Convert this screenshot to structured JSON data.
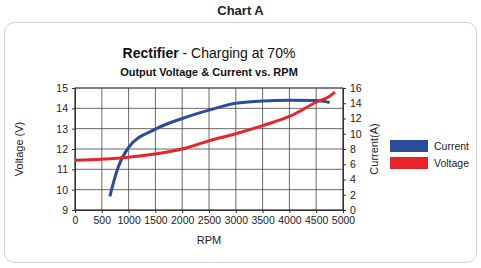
{
  "heading": "Chart A",
  "chart_data": {
    "type": "line",
    "title": "Rectifier - Charging at 70%",
    "subtitle": "Output Voltage & Current vs. RPM",
    "xlabel": "RPM",
    "ylabel": "Voltage (V)",
    "y2label": "Current(A)",
    "x": [
      0,
      500,
      650,
      800,
      1000,
      1500,
      2000,
      2500,
      3000,
      3500,
      4000,
      4500,
      4750,
      4850
    ],
    "series": [
      {
        "name": "Current",
        "color": "#2b4c9b",
        "axis": "y2",
        "values": [
          null,
          null,
          1.8,
          5.5,
          8.2,
          10.6,
          12.0,
          13.1,
          14.0,
          14.3,
          14.4,
          14.35,
          14.1,
          null
        ]
      },
      {
        "name": "Voltage",
        "color": "#e8232a",
        "values": [
          11.45,
          11.5,
          11.52,
          11.55,
          11.6,
          11.75,
          12.0,
          12.4,
          12.75,
          13.15,
          13.6,
          14.3,
          14.6,
          14.8
        ]
      }
    ],
    "xlim": [
      0,
      5000
    ],
    "xticks": [
      0,
      500,
      1000,
      1500,
      2000,
      2500,
      3000,
      3500,
      4000,
      4500,
      5000
    ],
    "ylim": [
      9,
      15
    ],
    "yticks": [
      9,
      10,
      11,
      12,
      13,
      14,
      15
    ],
    "y2lim": [
      0,
      16
    ],
    "y2ticks": [
      0,
      2,
      4,
      6,
      8,
      10,
      12,
      14,
      16
    ],
    "grid": true,
    "legend": "right"
  }
}
